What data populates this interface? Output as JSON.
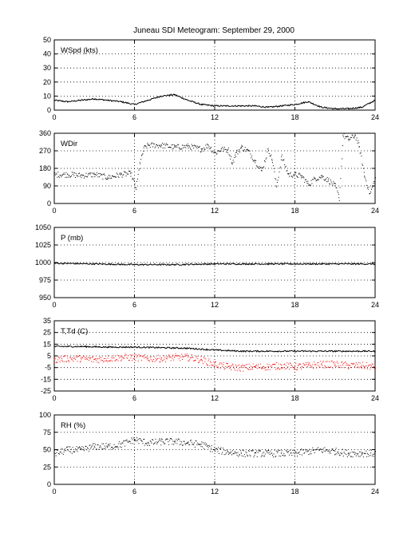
{
  "title": "Juneau SDI Meteogram: September 29, 2000",
  "colors": {
    "ink": "#000000",
    "dewpoint": "#ff0000",
    "background": "#ffffff"
  },
  "chart_data": [
    {
      "id": "wspd",
      "type": "line",
      "label": "WSpd (kts)",
      "ylim": [
        0,
        50
      ],
      "yticks": [
        "0",
        "10",
        "20",
        "30",
        "40",
        "50"
      ],
      "xlim": [
        0,
        24
      ],
      "xticks": [
        "0",
        "6",
        "12",
        "18",
        "24"
      ],
      "grid": true,
      "series": [
        {
          "style": "line",
          "color": "#000000",
          "x": [
            0,
            1,
            2,
            3,
            4,
            5,
            6,
            7,
            8,
            9,
            10,
            11,
            12,
            13,
            14,
            15,
            16,
            17,
            18,
            19,
            20,
            21,
            22,
            23,
            24
          ],
          "y": [
            7,
            6,
            7,
            8,
            7,
            6,
            4,
            7,
            10,
            11,
            7,
            4,
            3,
            3,
            3,
            3,
            2,
            3,
            4,
            6,
            2,
            1,
            1,
            2,
            7
          ]
        }
      ]
    },
    {
      "id": "wdir",
      "type": "scatter",
      "label": "WDir",
      "ylim": [
        0,
        360
      ],
      "yticks": [
        "0",
        "90",
        "180",
        "270",
        "360"
      ],
      "xlim": [
        0,
        24
      ],
      "xticks": [
        "0",
        "6",
        "12",
        "18",
        "24"
      ],
      "grid": true,
      "series": [
        {
          "style": "dots",
          "color": "#000000",
          "x": [
            0,
            1,
            2,
            3,
            4,
            5,
            5.7,
            6.1,
            6.4,
            6.7,
            7,
            8,
            9,
            10,
            11,
            11.5,
            12,
            12.5,
            13,
            13.3,
            13.6,
            14,
            14.5,
            15,
            15.5,
            16,
            16.3,
            16.6,
            17,
            17.5,
            18,
            18.5,
            19,
            19.5,
            20,
            20.5,
            21,
            21.3,
            21.6,
            22,
            22.5,
            22.8,
            23.2,
            23.6,
            24
          ],
          "y": [
            150,
            150,
            145,
            150,
            135,
            150,
            155,
            80,
            210,
            285,
            300,
            300,
            290,
            295,
            280,
            300,
            260,
            280,
            275,
            210,
            260,
            290,
            270,
            220,
            170,
            280,
            220,
            90,
            240,
            150,
            150,
            140,
            100,
            130,
            140,
            120,
            90,
            30,
            350,
            330,
            350,
            290,
            140,
            50,
            130
          ]
        }
      ]
    },
    {
      "id": "pres",
      "type": "line",
      "label": "P (mb)",
      "ylim": [
        950,
        1050
      ],
      "yticks": [
        "950",
        "975",
        "1000",
        "1025",
        "1050"
      ],
      "xlim": [
        0,
        24
      ],
      "xticks": [
        "0",
        "6",
        "12",
        "18",
        "24"
      ],
      "grid": true,
      "series": [
        {
          "style": "line",
          "color": "#000000",
          "x": [
            0,
            3,
            6,
            9,
            12,
            15,
            18,
            21,
            24
          ],
          "y": [
            999,
            998,
            997,
            997,
            998,
            998,
            998,
            998,
            998
          ]
        }
      ]
    },
    {
      "id": "temp",
      "type": "line",
      "label": "T,Td (C)",
      "ylim": [
        -25,
        35
      ],
      "yticks": [
        "-25",
        "-15",
        "-5",
        "5",
        "15",
        "25",
        "35"
      ],
      "xlim": [
        0,
        24
      ],
      "xticks": [
        "0",
        "6",
        "12",
        "18",
        "24"
      ],
      "grid": true,
      "series": [
        {
          "style": "line",
          "color": "#000000",
          "x": [
            0,
            2,
            4,
            6,
            8,
            10,
            12,
            14,
            16,
            18,
            20,
            22,
            24
          ],
          "y": [
            13,
            13,
            12.5,
            12.5,
            12,
            11.5,
            10,
            9,
            9,
            9,
            9,
            9,
            9
          ]
        },
        {
          "style": "dots",
          "color": "#ff0000",
          "x": [
            0,
            1,
            2,
            3,
            4,
            5,
            6,
            7,
            8,
            9,
            10,
            11,
            12,
            13,
            14,
            15,
            16,
            17,
            18,
            19,
            20,
            21,
            22,
            23,
            24
          ],
          "y": [
            2,
            3,
            3,
            2,
            3,
            4,
            4,
            3,
            3,
            4,
            4,
            2,
            -2,
            -4,
            -5,
            -4,
            -4,
            -3,
            -4,
            -3,
            -2,
            -2,
            -3,
            -3,
            -4
          ]
        }
      ]
    },
    {
      "id": "rh",
      "type": "scatter",
      "label": "RH (%)",
      "ylim": [
        0,
        100
      ],
      "yticks": [
        "0",
        "25",
        "50",
        "75",
        "100"
      ],
      "xlim": [
        0,
        24
      ],
      "xticks": [
        "0",
        "6",
        "12",
        "18",
        "24"
      ],
      "grid": true,
      "series": [
        {
          "style": "dots",
          "color": "#000000",
          "x": [
            0,
            1,
            2,
            3,
            4,
            5,
            6,
            7,
            8,
            9,
            10,
            11,
            12,
            13,
            14,
            15,
            16,
            17,
            18,
            19,
            20,
            21,
            22,
            23,
            24
          ],
          "y": [
            45,
            50,
            50,
            55,
            55,
            58,
            65,
            60,
            62,
            62,
            60,
            58,
            50,
            47,
            45,
            45,
            45,
            45,
            45,
            48,
            50,
            48,
            45,
            45,
            45
          ]
        }
      ]
    }
  ]
}
